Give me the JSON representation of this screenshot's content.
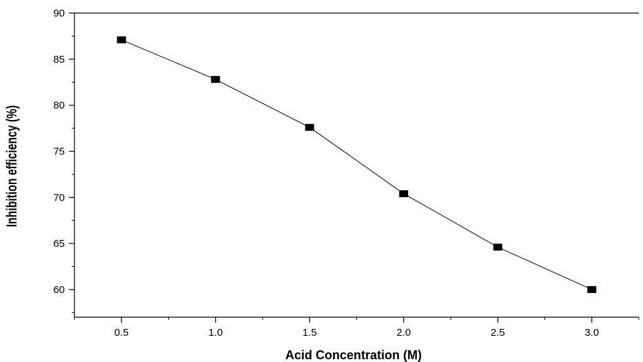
{
  "chart_data": {
    "type": "line",
    "title": "",
    "xlabel": "Acid Concentration (M)",
    "ylabel": "Inhibition efficiency (%)",
    "xlim": [
      0.25,
      3.25
    ],
    "ylim": [
      57,
      90
    ],
    "x_ticks": [
      0.5,
      1.0,
      1.5,
      2.0,
      2.5,
      3.0
    ],
    "x_tick_labels": [
      "0.5",
      "1.0",
      "1.5",
      "2.0",
      "2.5",
      "3.0"
    ],
    "y_ticks": [
      60,
      65,
      70,
      75,
      80,
      85,
      90
    ],
    "y_tick_labels": [
      "60",
      "65",
      "70",
      "75",
      "80",
      "85",
      "90"
    ],
    "grid": false,
    "legend": "none",
    "series": [
      {
        "marker": "square",
        "color": "#000000",
        "x": [
          0.5,
          1.0,
          1.5,
          2.0,
          2.5,
          3.0
        ],
        "y": [
          87.1,
          82.8,
          77.6,
          70.4,
          64.6,
          60.0
        ]
      }
    ]
  }
}
